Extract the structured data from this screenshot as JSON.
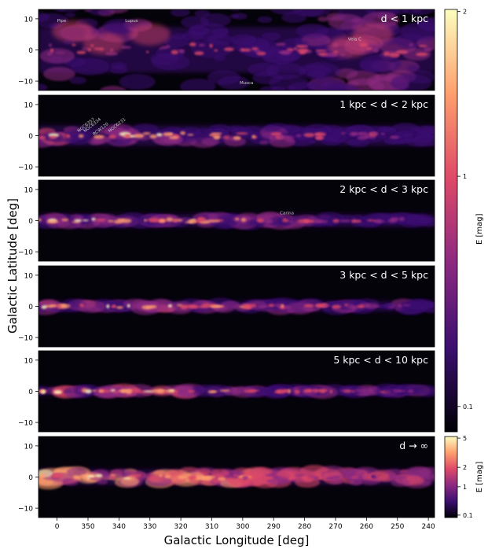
{
  "chart_data": {
    "type": "heatmap",
    "description_free": true,
    "xlabel": "Galactic Longitude [deg]",
    "ylabel": "Galactic Latitude [deg]",
    "x_ticks": [
      "0",
      "350",
      "340",
      "330",
      "320",
      "310",
      "300",
      "290",
      "280",
      "270",
      "260",
      "250",
      "240"
    ],
    "y_ticks": [
      "10",
      "0",
      "−10"
    ],
    "xlim": [
      6,
      -122
    ],
    "ylim": [
      -13,
      13
    ],
    "panels": [
      {
        "label": "d < 1 kpc",
        "annotations": [
          {
            "text": "Pipe",
            "l": 0,
            "b": 9
          },
          {
            "text": "Lupus",
            "l": 338,
            "b": 9
          },
          {
            "text": "Vela C",
            "l": 266,
            "b": 3
          },
          {
            "text": "Musca",
            "l": 301,
            "b": -11
          }
        ]
      },
      {
        "label": "1 kpc < d < 2 kpc",
        "annotations": [
          {
            "text": "NGC6334",
            "l": 351,
            "b": 1
          },
          {
            "text": "NGC6357",
            "l": 353,
            "b": 1
          },
          {
            "text": "RCW120",
            "l": 348,
            "b": 0
          },
          {
            "text": "NGC6231",
            "l": 343,
            "b": 1
          }
        ]
      },
      {
        "label": "2 kpc < d < 3 kpc",
        "annotations": [
          {
            "text": "Carina",
            "l": 288,
            "b": 2
          }
        ]
      },
      {
        "label": "3 kpc < d < 5 kpc",
        "annotations": []
      },
      {
        "label": "5 kpc < d < 10 kpc",
        "annotations": []
      },
      {
        "label": "d → ∞",
        "annotations": []
      }
    ],
    "colorbars": [
      {
        "label": "E [mag]",
        "ticks": [
          "2",
          "1",
          "0.1"
        ],
        "scale": "log"
      },
      {
        "label": "E [mag]",
        "ticks": [
          "5",
          "2",
          "1",
          "0.1"
        ],
        "scale": "log"
      }
    ],
    "colormap": [
      "#000004",
      "#3b0f70",
      "#8c2981",
      "#de4968",
      "#fe9f6d",
      "#fcfdbf"
    ]
  }
}
